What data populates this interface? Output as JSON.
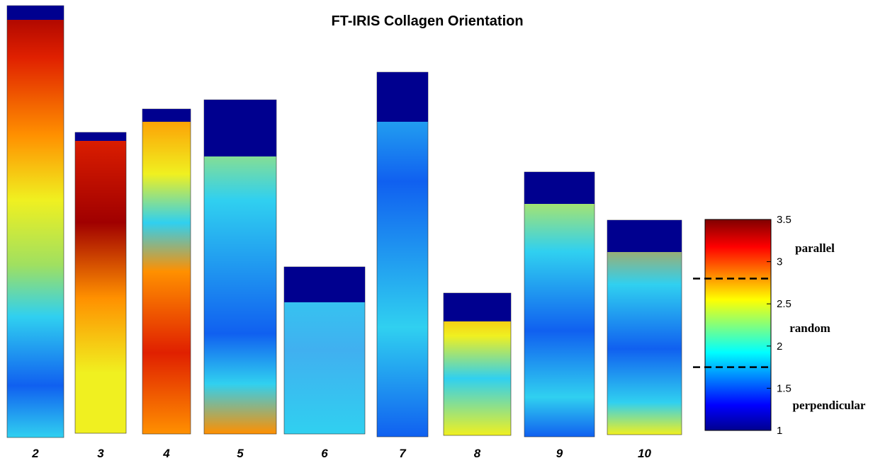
{
  "title": "FT-IRIS Collagen Orientation",
  "panels": [
    {
      "label": "2"
    },
    {
      "label": "3"
    },
    {
      "label": "4"
    },
    {
      "label": "5"
    },
    {
      "label": "6"
    },
    {
      "label": "7"
    },
    {
      "label": "8"
    },
    {
      "label": "9"
    },
    {
      "label": "10"
    }
  ],
  "colorbar": {
    "lim": [
      1,
      3.5
    ],
    "ticks": [
      1,
      1.5,
      2,
      2.5,
      3,
      3.5
    ],
    "thresholds": [
      2.8,
      1.75
    ]
  },
  "annotations": [
    "parallel",
    "random",
    "perpendicular"
  ]
}
